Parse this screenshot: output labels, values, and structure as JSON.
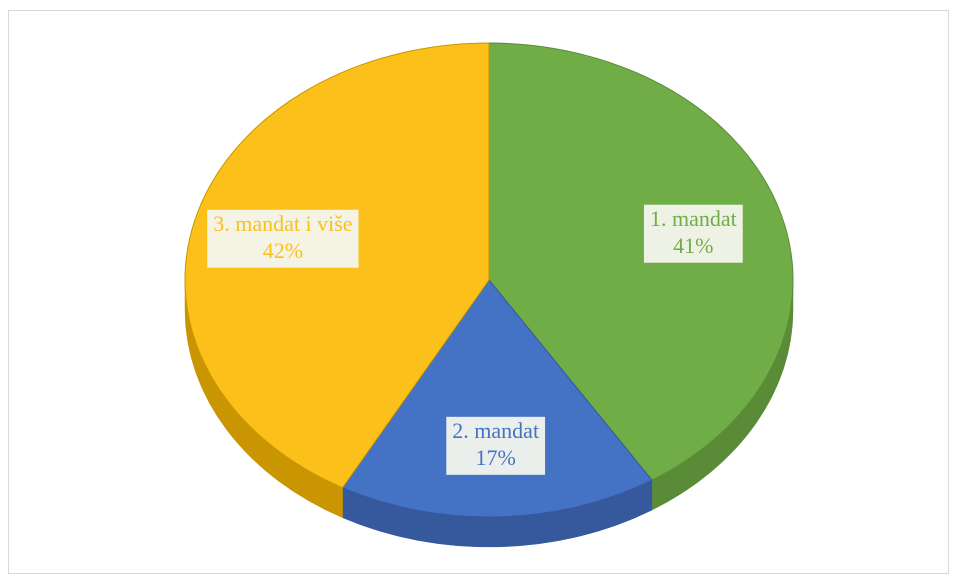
{
  "chart_data": {
    "type": "pie",
    "categories": [
      "1. mandat",
      "2. mandat",
      "3. mandat i više"
    ],
    "values": [
      41,
      17,
      42
    ],
    "value_labels": [
      "41%",
      "17%",
      "42%"
    ],
    "colors": [
      "#70ad47",
      "#4472c4",
      "#fbc01a"
    ],
    "side_colors": [
      "#5a8c38",
      "#35599c",
      "#c99500"
    ]
  }
}
